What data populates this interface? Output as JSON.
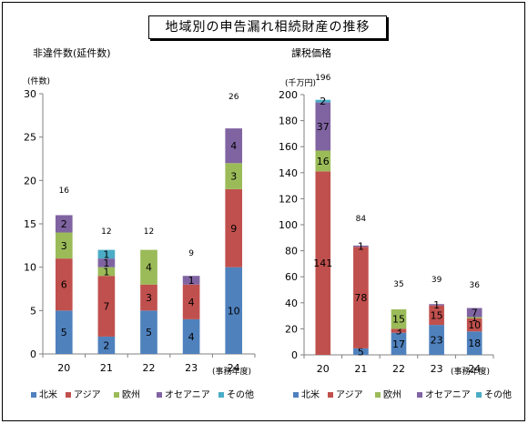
{
  "title": "地域別の申告漏れ相続財産の推移",
  "legend_labels": [
    "北米",
    "アジア",
    "欧州",
    "オセアニア",
    "その他"
  ],
  "colors": {
    "北米": "#4f81bd",
    "アジア": "#c0504d",
    "欧州": "#9bbb59",
    "オセアニア": "#8064a2",
    "その他": "#4bacc6"
  },
  "chart_data": [
    {
      "type": "bar",
      "stacked": true,
      "title": "非違件数(延件数)",
      "ylabel": "(件数)",
      "xlabel": "(事務年度)",
      "categories": [
        "20",
        "21",
        "22",
        "23",
        "24"
      ],
      "ylim": [
        0,
        30
      ],
      "yticks": [
        0,
        5,
        10,
        15,
        20,
        25,
        30
      ],
      "totals": [
        16,
        12,
        12,
        9,
        26
      ],
      "series": [
        {
          "name": "北米",
          "values": [
            5,
            2,
            5,
            4,
            10
          ]
        },
        {
          "name": "アジア",
          "values": [
            6,
            7,
            3,
            4,
            9
          ]
        },
        {
          "name": "欧州",
          "values": [
            3,
            1,
            4,
            0,
            3
          ]
        },
        {
          "name": "オセアニア",
          "values": [
            2,
            1,
            0,
            1,
            4
          ]
        },
        {
          "name": "その他",
          "values": [
            0,
            1,
            0,
            0,
            0
          ]
        }
      ],
      "bar_labels": [
        [
          "5",
          "6",
          "3",
          "2",
          null
        ],
        [
          "2",
          "7",
          "1",
          "1",
          "1"
        ],
        [
          "5",
          "3",
          "4",
          null,
          null
        ],
        [
          "4",
          "4",
          null,
          "1",
          null
        ],
        [
          "10",
          "9",
          "3",
          "4",
          null
        ]
      ],
      "legend_position": "bottom",
      "grid": false
    },
    {
      "type": "bar",
      "stacked": true,
      "title": "課税価格",
      "ylabel": "(千万円)",
      "xlabel": "(事務年度)",
      "categories": [
        "20",
        "21",
        "22",
        "23",
        "24"
      ],
      "ylim": [
        0,
        200
      ],
      "yticks": [
        0,
        20,
        40,
        60,
        80,
        100,
        120,
        140,
        160,
        180,
        200
      ],
      "totals": [
        196,
        84,
        35,
        39,
        36
      ],
      "series": [
        {
          "name": "北米",
          "values": [
            0,
            5,
            17,
            23,
            18
          ]
        },
        {
          "name": "アジア",
          "values": [
            141,
            78,
            3,
            15,
            10
          ]
        },
        {
          "name": "欧州",
          "values": [
            16,
            0,
            15,
            0,
            1
          ]
        },
        {
          "name": "オセアニア",
          "values": [
            37,
            1,
            0,
            1,
            7
          ]
        },
        {
          "name": "その他",
          "values": [
            2,
            0,
            0,
            0,
            0
          ]
        }
      ],
      "bar_labels": [
        [
          null,
          "141",
          "16",
          "37",
          "2"
        ],
        [
          "5",
          "78",
          null,
          "1",
          null
        ],
        [
          "17",
          "3",
          "15",
          null,
          null
        ],
        [
          "23",
          "15",
          null,
          "1",
          null
        ],
        [
          "18",
          "10",
          "1",
          "7",
          null
        ]
      ],
      "legend_position": "bottom",
      "grid": false
    }
  ]
}
